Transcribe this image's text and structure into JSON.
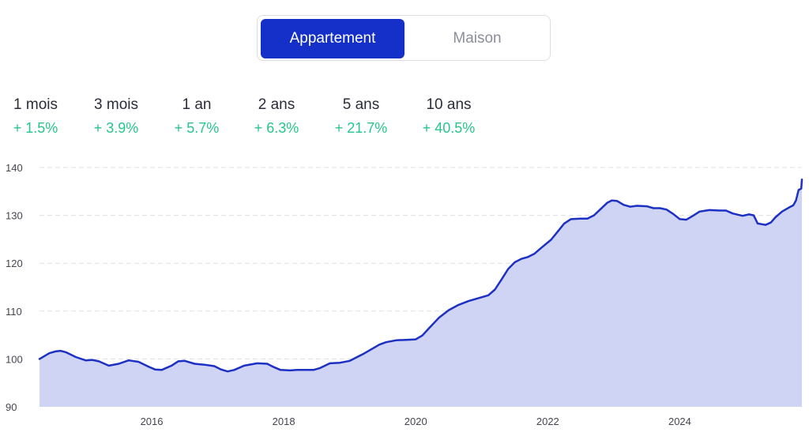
{
  "toggle": {
    "options": [
      {
        "label": "Appartement",
        "active": true
      },
      {
        "label": "Maison",
        "active": false
      }
    ]
  },
  "stats": [
    {
      "label": "1 mois",
      "value": "+ 1.5%"
    },
    {
      "label": "3 mois",
      "value": "+ 3.9%"
    },
    {
      "label": "1 an",
      "value": "+ 5.7%"
    },
    {
      "label": "2 ans",
      "value": "+ 6.3%"
    },
    {
      "label": "5 ans",
      "value": "+ 21.7%"
    },
    {
      "label": "10 ans",
      "value": "+ 40.5%"
    }
  ],
  "colors": {
    "accent": "#1430c8",
    "positive": "#25c68b",
    "line": "#1c30c4",
    "area": "#d0d4f4",
    "grid": "#dedfe6"
  },
  "chart_data": {
    "type": "area",
    "title": "",
    "xlabel": "",
    "ylabel": "",
    "ylim": [
      90,
      140
    ],
    "xlim": [
      2014.3,
      2025.85
    ],
    "yticks": [
      90,
      100,
      110,
      120,
      130,
      140
    ],
    "xticks": [
      2016,
      2018,
      2020,
      2022,
      2024
    ],
    "grid": true,
    "series": [
      {
        "name": "Appartement",
        "points": [
          [
            2014.3,
            100.0
          ],
          [
            2014.45,
            101.2
          ],
          [
            2014.55,
            101.6
          ],
          [
            2014.62,
            101.7
          ],
          [
            2014.7,
            101.4
          ],
          [
            2014.85,
            100.4
          ],
          [
            2015.0,
            99.7
          ],
          [
            2015.1,
            99.8
          ],
          [
            2015.2,
            99.5
          ],
          [
            2015.35,
            98.6
          ],
          [
            2015.5,
            99.0
          ],
          [
            2015.65,
            99.7
          ],
          [
            2015.8,
            99.4
          ],
          [
            2015.95,
            98.4
          ],
          [
            2016.05,
            97.8
          ],
          [
            2016.15,
            97.7
          ],
          [
            2016.3,
            98.6
          ],
          [
            2016.4,
            99.5
          ],
          [
            2016.5,
            99.6
          ],
          [
            2016.65,
            99.0
          ],
          [
            2016.8,
            98.8
          ],
          [
            2016.95,
            98.5
          ],
          [
            2017.05,
            97.8
          ],
          [
            2017.15,
            97.4
          ],
          [
            2017.25,
            97.7
          ],
          [
            2017.4,
            98.6
          ],
          [
            2017.6,
            99.1
          ],
          [
            2017.75,
            99.0
          ],
          [
            2017.85,
            98.3
          ],
          [
            2017.95,
            97.7
          ],
          [
            2018.1,
            97.6
          ],
          [
            2018.2,
            97.7
          ],
          [
            2018.45,
            97.7
          ],
          [
            2018.55,
            98.1
          ],
          [
            2018.7,
            99.1
          ],
          [
            2018.85,
            99.2
          ],
          [
            2019.0,
            99.6
          ],
          [
            2019.2,
            101.0
          ],
          [
            2019.35,
            102.2
          ],
          [
            2019.45,
            103.0
          ],
          [
            2019.55,
            103.5
          ],
          [
            2019.7,
            103.9
          ],
          [
            2019.85,
            104.0
          ],
          [
            2020.0,
            104.1
          ],
          [
            2020.1,
            104.9
          ],
          [
            2020.2,
            106.4
          ],
          [
            2020.35,
            108.6
          ],
          [
            2020.5,
            110.2
          ],
          [
            2020.65,
            111.3
          ],
          [
            2020.8,
            112.1
          ],
          [
            2020.95,
            112.7
          ],
          [
            2021.1,
            113.3
          ],
          [
            2021.2,
            114.5
          ],
          [
            2021.3,
            116.6
          ],
          [
            2021.4,
            118.8
          ],
          [
            2021.5,
            120.2
          ],
          [
            2021.6,
            120.9
          ],
          [
            2021.7,
            121.3
          ],
          [
            2021.8,
            122.0
          ],
          [
            2021.9,
            123.2
          ],
          [
            2022.05,
            124.9
          ],
          [
            2022.15,
            126.6
          ],
          [
            2022.25,
            128.3
          ],
          [
            2022.35,
            129.2
          ],
          [
            2022.5,
            129.3
          ],
          [
            2022.6,
            129.3
          ],
          [
            2022.7,
            130.0
          ],
          [
            2022.8,
            131.3
          ],
          [
            2022.9,
            132.6
          ],
          [
            2022.97,
            133.1
          ],
          [
            2023.05,
            133.0
          ],
          [
            2023.15,
            132.2
          ],
          [
            2023.25,
            131.8
          ],
          [
            2023.35,
            132.0
          ],
          [
            2023.5,
            131.9
          ],
          [
            2023.6,
            131.5
          ],
          [
            2023.7,
            131.5
          ],
          [
            2023.8,
            131.2
          ],
          [
            2023.9,
            130.3
          ],
          [
            2024.0,
            129.2
          ],
          [
            2024.1,
            129.1
          ],
          [
            2024.2,
            129.9
          ],
          [
            2024.3,
            130.8
          ],
          [
            2024.45,
            131.1
          ],
          [
            2024.6,
            131.0
          ],
          [
            2024.7,
            131.0
          ],
          [
            2024.8,
            130.4
          ],
          [
            2024.95,
            129.9
          ],
          [
            2025.05,
            130.2
          ],
          [
            2025.12,
            130.0
          ],
          [
            2025.18,
            128.3
          ],
          [
            2025.3,
            128.0
          ],
          [
            2025.38,
            128.5
          ],
          [
            2025.45,
            129.6
          ],
          [
            2025.55,
            130.8
          ],
          [
            2025.65,
            131.6
          ],
          [
            2025.72,
            132.1
          ],
          [
            2025.76,
            133.1
          ],
          [
            2025.8,
            135.3
          ],
          [
            2025.84,
            135.6
          ],
          [
            2025.85,
            137.5
          ]
        ]
      }
    ]
  }
}
